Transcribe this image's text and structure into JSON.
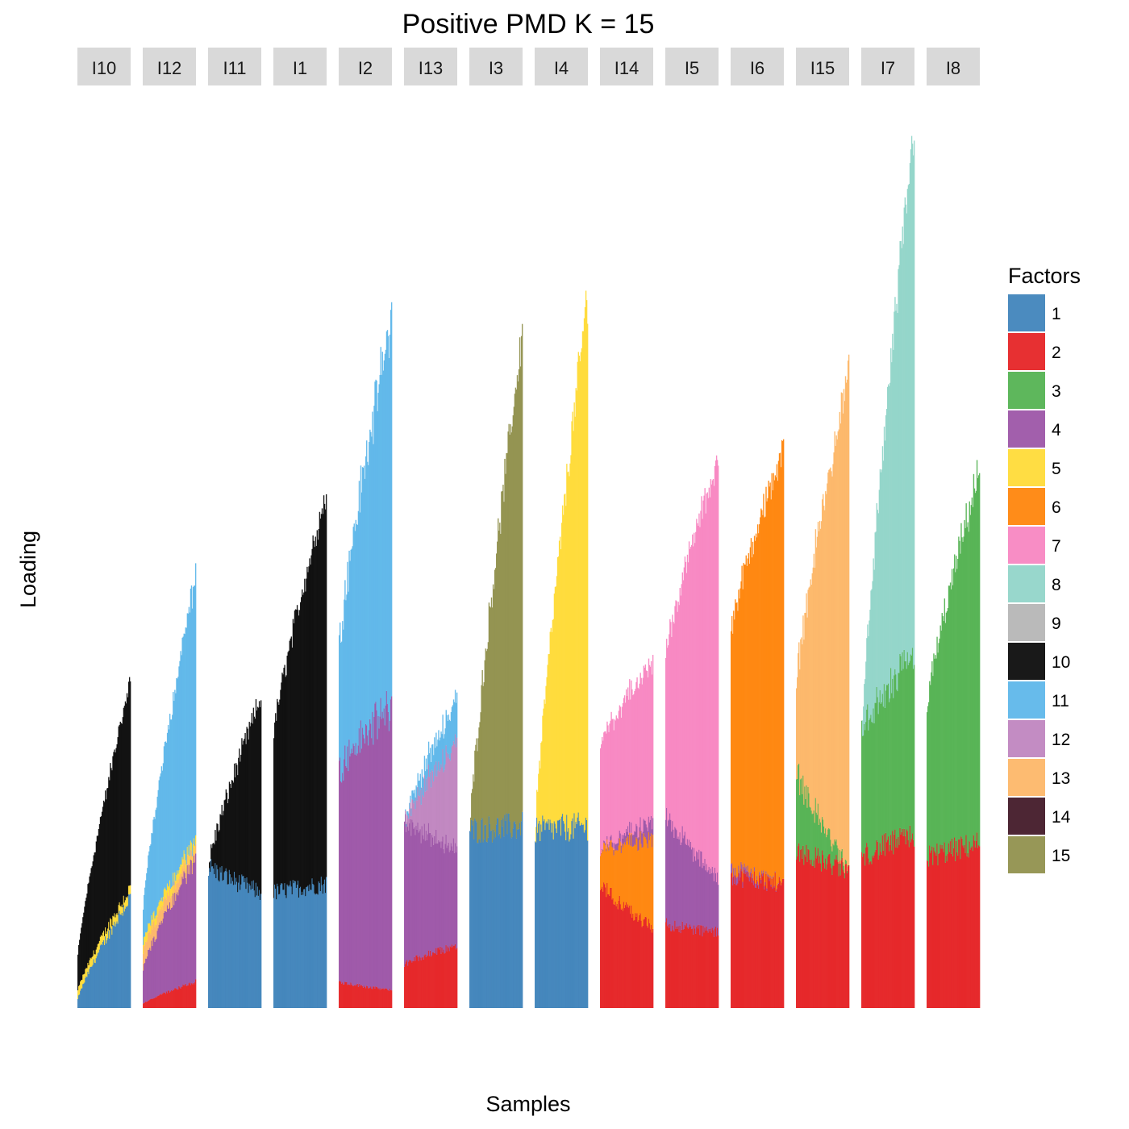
{
  "chart_data": {
    "type": "stacked-bar",
    "title": "Positive PMD K = 15",
    "xlabel": "Samples",
    "ylabel": "Loading",
    "ylim": [
      0,
      1.0
    ],
    "grid": false,
    "legend": {
      "title": "Factors",
      "placement": "right",
      "entries": [
        "1",
        "2",
        "3",
        "4",
        "5",
        "6",
        "7",
        "8",
        "9",
        "10",
        "11",
        "12",
        "13",
        "14",
        "15"
      ]
    },
    "factor_colors": {
      "1": "#377EB8",
      "2": "#E41A1C",
      "3": "#4DAF4A",
      "4": "#984EA3",
      "5": "#FFD92F",
      "6": "#FF7F00",
      "7": "#F781BF",
      "8": "#8DD3C7",
      "9": "#B3B3B3",
      "10": "#000000",
      "11": "#56B4E9",
      "12": "#BC80BD",
      "13": "#FDB462",
      "14": "#3A0E1E",
      "15": "#8C8C45"
    },
    "panels": [
      {
        "label": "I10",
        "bars": 64,
        "layers": [
          {
            "factor": "1",
            "start": 0.01,
            "end": 0.125
          },
          {
            "factor": "5",
            "start": 0.01,
            "end": 0.01
          },
          {
            "factor": "10",
            "start": 0.04,
            "end": 0.235
          }
        ]
      },
      {
        "label": "I12",
        "bars": 64,
        "layers": [
          {
            "factor": "2",
            "start": 0.005,
            "end": 0.03
          },
          {
            "factor": "4",
            "start": 0.04,
            "end": 0.14
          },
          {
            "factor": "13",
            "start": 0.02,
            "end": 0.01
          },
          {
            "factor": "5",
            "start": 0.01,
            "end": 0.01
          },
          {
            "factor": "11",
            "start": 0.04,
            "end": 0.3
          }
        ]
      },
      {
        "label": "I11",
        "bars": 64,
        "layers": [
          {
            "factor": "1",
            "start": 0.16,
            "end": 0.13
          },
          {
            "factor": "10",
            "start": 0.0,
            "end": 0.22
          }
        ]
      },
      {
        "label": "I1",
        "bars": 64,
        "layers": [
          {
            "factor": "1",
            "start": 0.13,
            "end": 0.14
          },
          {
            "factor": "10",
            "start": 0.18,
            "end": 0.44
          }
        ]
      },
      {
        "label": "I2",
        "bars": 64,
        "layers": [
          {
            "factor": "2",
            "start": 0.03,
            "end": 0.02
          },
          {
            "factor": "4",
            "start": 0.24,
            "end": 0.32
          },
          {
            "factor": "11",
            "start": 0.14,
            "end": 0.44
          }
        ]
      },
      {
        "label": "I13",
        "bars": 64,
        "layers": [
          {
            "factor": "2",
            "start": 0.05,
            "end": 0.07
          },
          {
            "factor": "4",
            "start": 0.16,
            "end": 0.11
          },
          {
            "factor": "12",
            "start": 0.0,
            "end": 0.12
          },
          {
            "factor": "11",
            "start": 0.0,
            "end": 0.05
          }
        ]
      },
      {
        "label": "I3",
        "bars": 64,
        "layers": [
          {
            "factor": "1",
            "start": 0.2,
            "end": 0.205
          },
          {
            "factor": "15",
            "start": 0.0,
            "end": 0.555
          }
        ]
      },
      {
        "label": "I4",
        "bars": 64,
        "layers": [
          {
            "factor": "1",
            "start": 0.2,
            "end": 0.205
          },
          {
            "factor": "5",
            "start": 0.0,
            "end": 0.6
          }
        ]
      },
      {
        "label": "I14",
        "bars": 64,
        "layers": [
          {
            "factor": "2",
            "start": 0.14,
            "end": 0.09
          },
          {
            "factor": "6",
            "start": 0.04,
            "end": 0.1
          },
          {
            "factor": "4",
            "start": 0.0,
            "end": 0.02
          },
          {
            "factor": "7",
            "start": 0.12,
            "end": 0.18
          }
        ]
      },
      {
        "label": "I5",
        "bars": 64,
        "layers": [
          {
            "factor": "2",
            "start": 0.095,
            "end": 0.085
          },
          {
            "factor": "4",
            "start": 0.125,
            "end": 0.06
          },
          {
            "factor": "7",
            "start": 0.18,
            "end": 0.475
          }
        ]
      },
      {
        "label": "I6",
        "bars": 64,
        "layers": [
          {
            "factor": "2",
            "start": 0.15,
            "end": 0.14
          },
          {
            "factor": "4",
            "start": 0.01,
            "end": 0.0
          },
          {
            "factor": "6",
            "start": 0.27,
            "end": 0.49
          }
        ]
      },
      {
        "label": "I15",
        "bars": 64,
        "layers": [
          {
            "factor": "2",
            "start": 0.18,
            "end": 0.155
          },
          {
            "factor": "3",
            "start": 0.09,
            "end": 0.0
          },
          {
            "factor": "13",
            "start": 0.1,
            "end": 0.56
          }
        ]
      },
      {
        "label": "I7",
        "bars": 64,
        "layers": [
          {
            "factor": "2",
            "start": 0.17,
            "end": 0.195
          },
          {
            "factor": "3",
            "start": 0.14,
            "end": 0.2
          },
          {
            "factor": "8",
            "start": 0.0,
            "end": 0.6
          }
        ]
      },
      {
        "label": "I8",
        "bars": 64,
        "layers": [
          {
            "factor": "2",
            "start": 0.17,
            "end": 0.185
          },
          {
            "factor": "3",
            "start": 0.17,
            "end": 0.42
          }
        ]
      }
    ]
  }
}
